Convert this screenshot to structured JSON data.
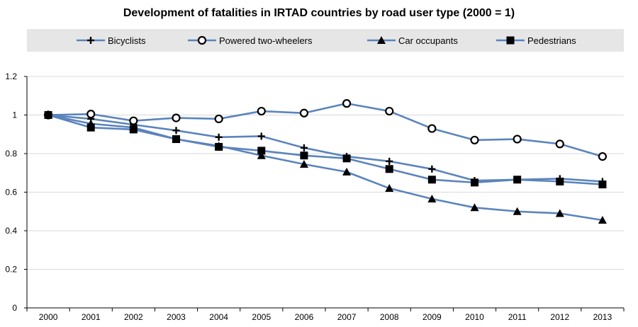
{
  "chart_data": {
    "type": "line",
    "title": "Development of fatalities in IRTAD countries by road user type (2000 = 1)",
    "xlabel": "",
    "ylabel": "",
    "categories": [
      "2000",
      "2001",
      "2002",
      "2003",
      "2004",
      "2005",
      "2006",
      "2007",
      "2008",
      "2009",
      "2010",
      "2011",
      "2012",
      "2013"
    ],
    "ylim": [
      0,
      1.2
    ],
    "yticks": [
      0,
      0.2,
      0.4,
      0.6,
      0.8,
      1,
      1.2
    ],
    "ytick_labels": [
      "0",
      "0.2",
      "0.4",
      "0.6",
      "0.8",
      "1",
      "1.2"
    ],
    "grid": "horizontal",
    "legend_position": "top",
    "line_color": "#5B84BC",
    "marker_color": "#000000",
    "series": [
      {
        "name": "Bicyclists",
        "marker": "plus",
        "values": [
          1.0,
          0.98,
          0.95,
          0.92,
          0.885,
          0.89,
          0.83,
          0.785,
          0.76,
          0.72,
          0.66,
          0.665,
          0.67,
          0.655
        ]
      },
      {
        "name": "Powered two-wheelers",
        "marker": "circle",
        "values": [
          1.0,
          1.005,
          0.97,
          0.985,
          0.98,
          1.02,
          1.01,
          1.06,
          1.02,
          0.93,
          0.87,
          0.875,
          0.85,
          0.785
        ]
      },
      {
        "name": "Car occupants",
        "marker": "triangle",
        "values": [
          1.0,
          0.955,
          0.935,
          0.875,
          0.84,
          0.79,
          0.745,
          0.705,
          0.62,
          0.565,
          0.52,
          0.5,
          0.49,
          0.455
        ]
      },
      {
        "name": "Pedestrians",
        "marker": "square",
        "values": [
          1.0,
          0.935,
          0.925,
          0.875,
          0.835,
          0.815,
          0.79,
          0.775,
          0.72,
          0.665,
          0.65,
          0.665,
          0.655,
          0.64
        ]
      }
    ]
  }
}
